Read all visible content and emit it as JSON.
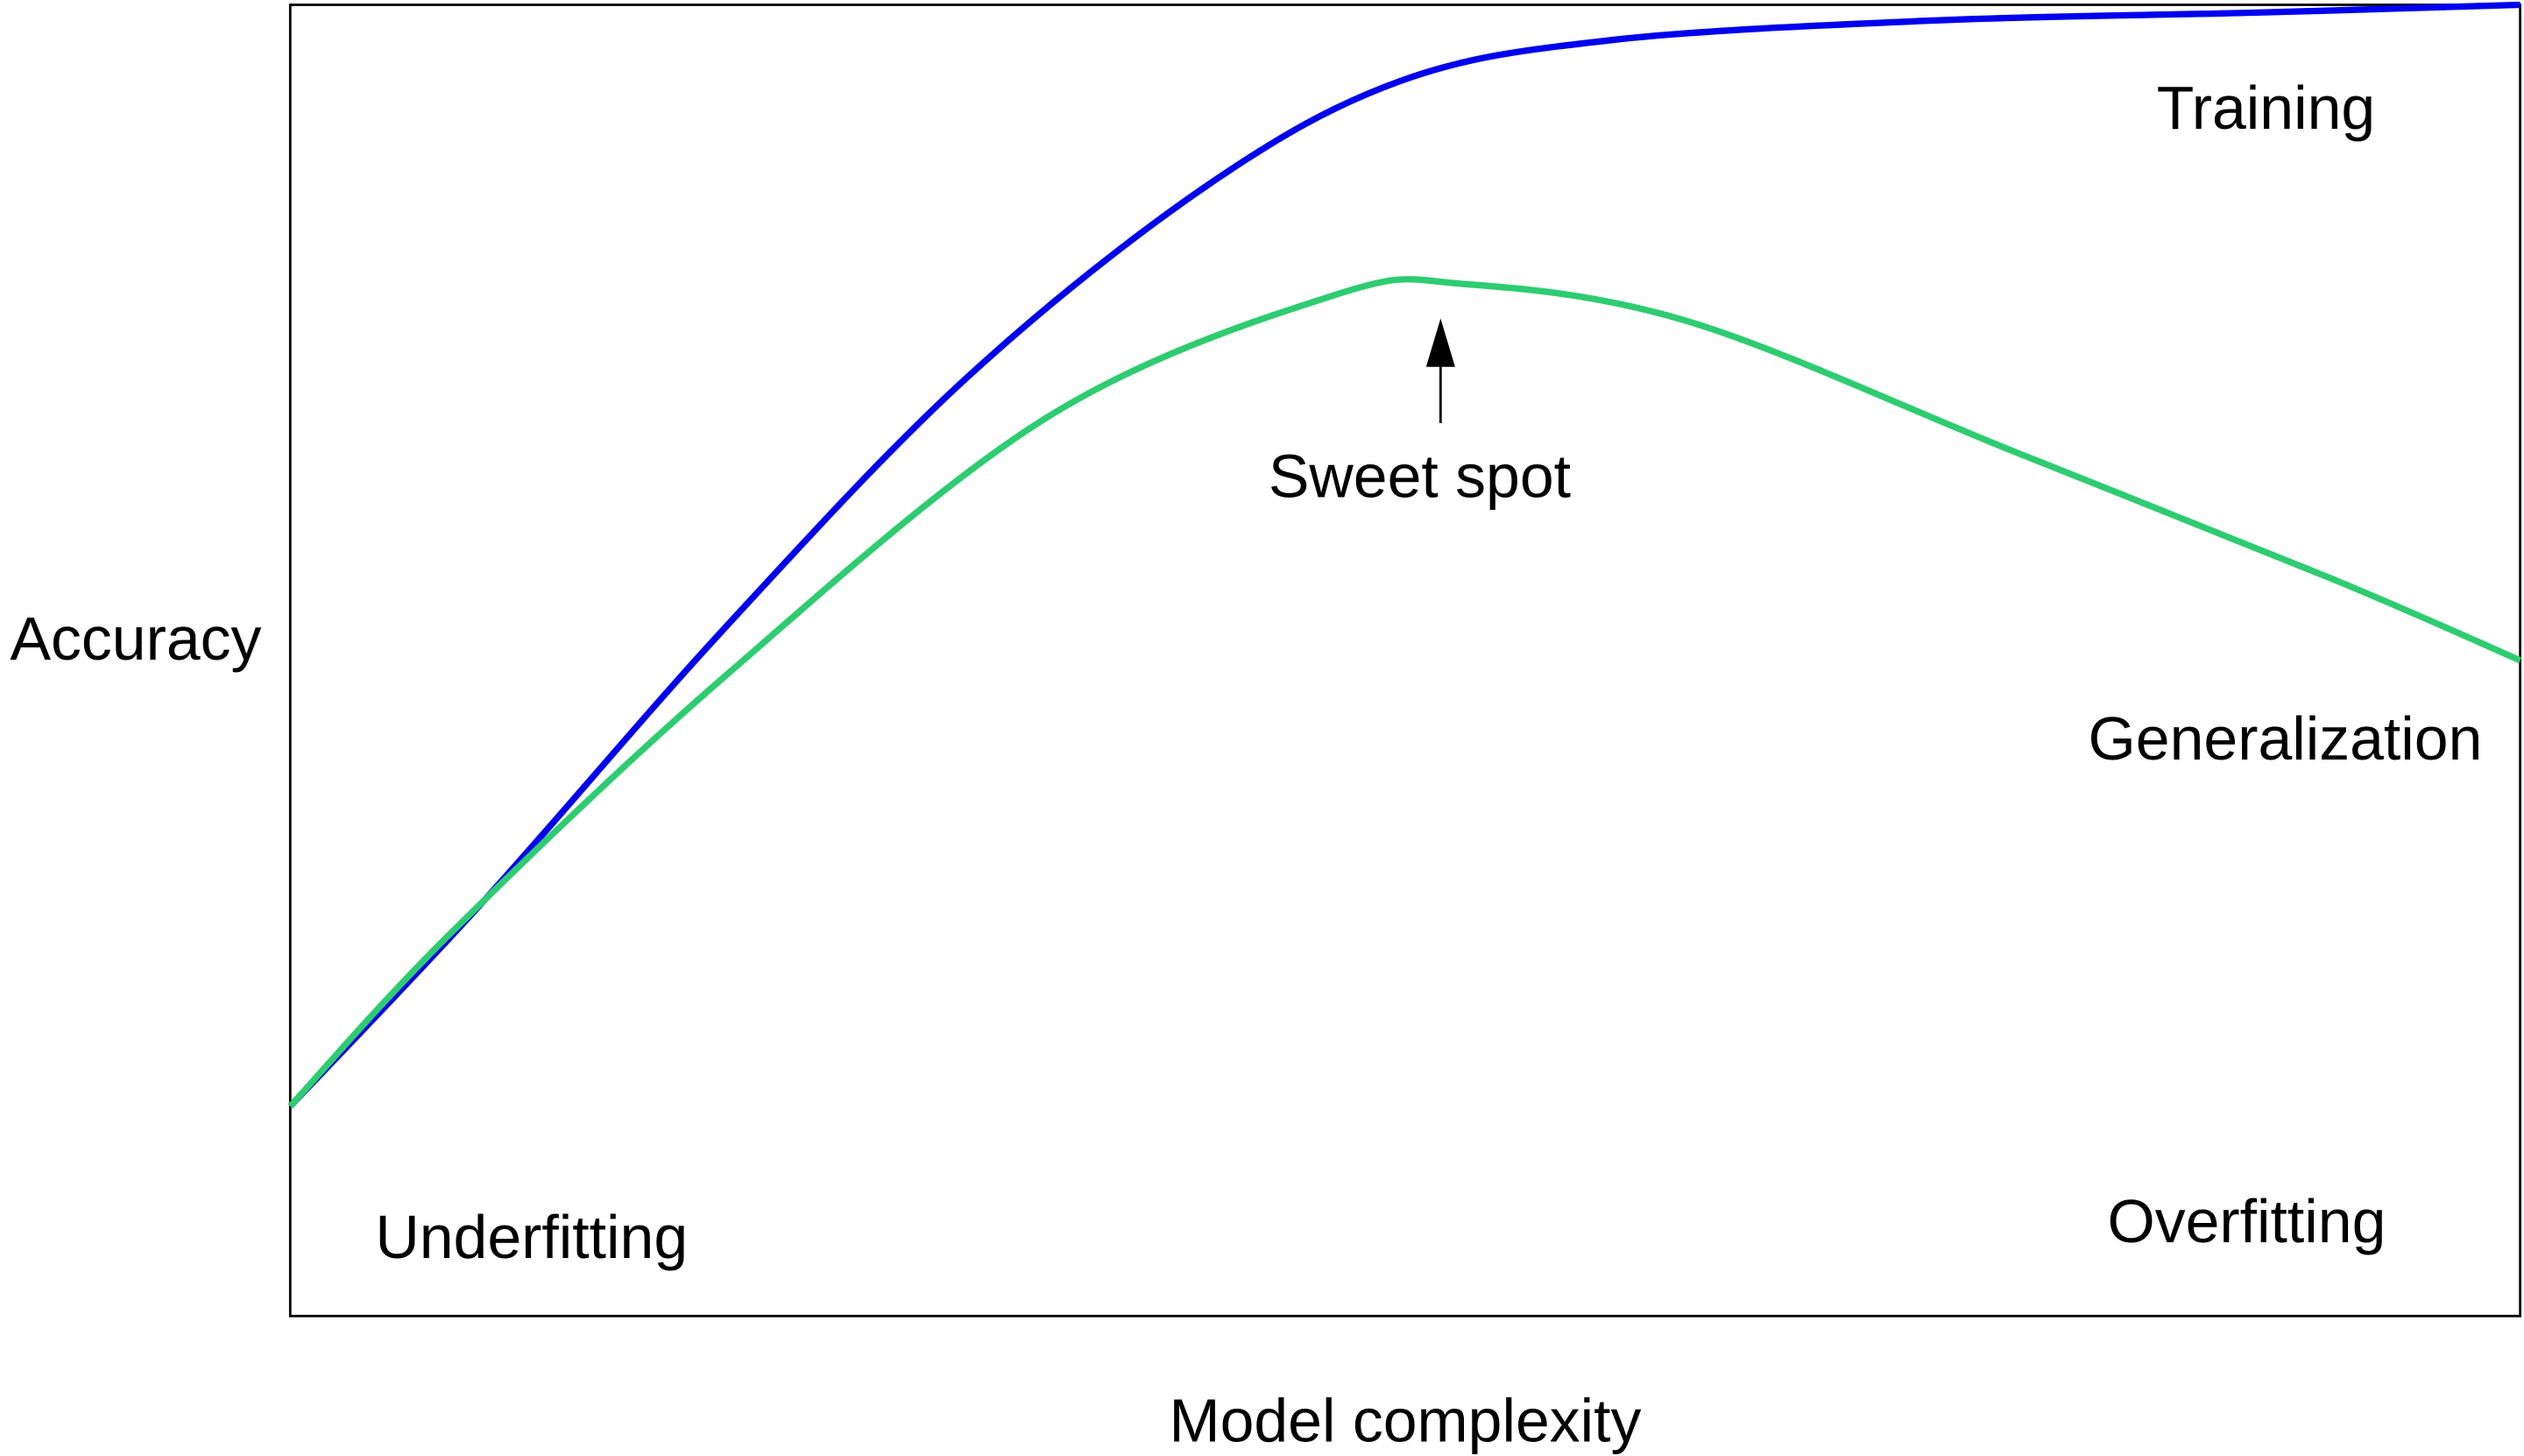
{
  "chart_data": {
    "type": "line",
    "title": "",
    "xlabel": "Model complexity",
    "ylabel": "Accuracy",
    "xlim": [
      0,
      1
    ],
    "ylim": [
      0,
      1
    ],
    "grid": false,
    "series": [
      {
        "label": "Training",
        "color": "#0000ee",
        "x": [
          0,
          0.087,
          0.195,
          0.303,
          0.411,
          0.498,
          0.592,
          0.736,
          0.88,
          1
        ],
        "y": [
          0.16,
          0.317,
          0.525,
          0.715,
          0.862,
          0.942,
          0.973,
          0.988,
          0.994,
          1
        ]
      },
      {
        "label": "Generalization",
        "color": "#2ecc71",
        "x": [
          0,
          0.072,
          0.195,
          0.339,
          0.469,
          0.527,
          0.628,
          0.772,
          0.916,
          1
        ],
        "y": [
          0.16,
          0.292,
          0.488,
          0.685,
          0.779,
          0.787,
          0.758,
          0.66,
          0.562,
          0.5
        ]
      }
    ],
    "annotations": {
      "sweet_spot": {
        "text": "Sweet spot",
        "x": 0.516
      },
      "underfitting": "Underfitting",
      "overfitting": "Overfitting"
    }
  }
}
